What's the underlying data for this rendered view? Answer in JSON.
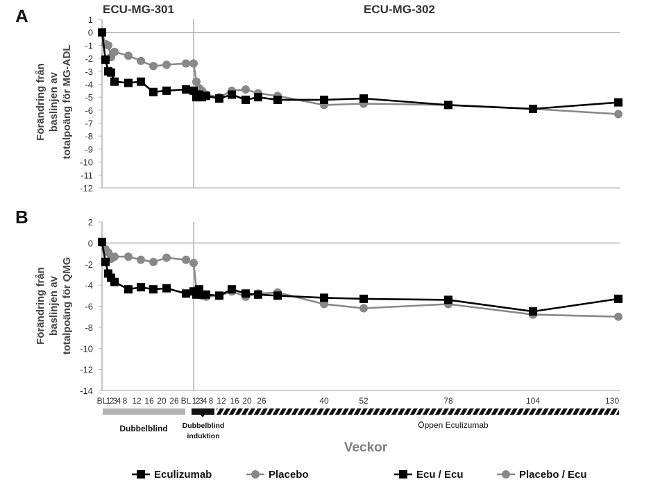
{
  "colors": {
    "eculizumab": "#000000",
    "placebo": "#888888",
    "axis": "#b0b0b0",
    "phase_db": "#b3b3b3"
  },
  "study_labels": [
    "ECU-MG-301",
    "ECU-MG-302"
  ],
  "x_axis": {
    "title": "Veckor",
    "tick_labels_301": [
      "BL",
      "1",
      "2",
      "3",
      "4",
      "8",
      "12",
      "16",
      "20",
      "26"
    ],
    "tick_labels_302": [
      "BL",
      "1",
      "2",
      "3",
      "4",
      "8",
      "12",
      "16",
      "20",
      "26",
      "40",
      "52",
      "78",
      "104",
      "130"
    ]
  },
  "phases": {
    "double_blind": "Dubbelblind",
    "double_blind_induction_line1": "Dubbelblind",
    "double_blind_induction_line2": "induktion",
    "open_label": "Öppen Eculizumab"
  },
  "legend": [
    {
      "label": "Eculizumab",
      "series": "eculizumab"
    },
    {
      "label": "Placebo",
      "series": "placebo"
    },
    {
      "label": "Ecu / Ecu",
      "series": "eculizumab"
    },
    {
      "label": "Placebo / Ecu",
      "series": "placebo"
    }
  ],
  "chart_data": [
    {
      "type": "line",
      "panel": "A",
      "ylabel": [
        "Förändring från",
        "baslinjen av",
        "totalpoäng för MG-ADL"
      ],
      "ylim": [
        -12,
        1
      ],
      "yticks": [
        1,
        0,
        -1,
        -2,
        -3,
        -4,
        -5,
        -6,
        -7,
        -8,
        -9,
        -10,
        -11,
        -12
      ],
      "series": [
        {
          "name": "Eculizumab / Ecu / Ecu",
          "color_key": "eculizumab",
          "marker": "square",
          "points_301": [
            [
              "BL",
              0
            ],
            [
              "1",
              -2.1
            ],
            [
              "2",
              -3.0
            ],
            [
              "3",
              -3.1
            ],
            [
              "4",
              -3.8
            ],
            [
              "8",
              -3.9
            ],
            [
              "12",
              -3.8
            ],
            [
              "16",
              -4.6
            ],
            [
              "20",
              -4.5
            ],
            [
              "26",
              -4.4
            ]
          ],
          "points_302": [
            [
              "BL",
              -4.5
            ],
            [
              "1",
              -5.0
            ],
            [
              "2",
              -4.8
            ],
            [
              "3",
              -5.0
            ],
            [
              "4",
              -4.9
            ],
            [
              "8",
              -5.1
            ],
            [
              "12",
              -4.8
            ],
            [
              "16",
              -5.2
            ],
            [
              "20",
              -5.0
            ],
            [
              "26",
              -5.2
            ],
            [
              "40",
              -5.2
            ],
            [
              "52",
              -5.1
            ],
            [
              "78",
              -5.6
            ],
            [
              "104",
              -5.9
            ],
            [
              "130",
              -5.4
            ]
          ]
        },
        {
          "name": "Placebo / Placebo / Ecu",
          "color_key": "placebo",
          "marker": "circle",
          "points_301": [
            [
              "BL",
              0
            ],
            [
              "1",
              -0.9
            ],
            [
              "2",
              -1.0
            ],
            [
              "3",
              -1.9
            ],
            [
              "4",
              -1.5
            ],
            [
              "8",
              -1.8
            ],
            [
              "12",
              -2.2
            ],
            [
              "16",
              -2.6
            ],
            [
              "20",
              -2.5
            ],
            [
              "26",
              -2.4
            ]
          ],
          "points_302": [
            [
              "BL",
              -2.4
            ],
            [
              "1",
              -3.8
            ],
            [
              "2",
              -4.3
            ],
            [
              "3",
              -4.5
            ],
            [
              "4",
              -4.8
            ],
            [
              "8",
              -5.0
            ],
            [
              "12",
              -4.5
            ],
            [
              "16",
              -4.4
            ],
            [
              "20",
              -4.7
            ],
            [
              "26",
              -4.9
            ],
            [
              "40",
              -5.6
            ],
            [
              "52",
              -5.5
            ],
            [
              "78",
              -5.6
            ],
            [
              "104",
              -5.9
            ],
            [
              "130",
              -6.3
            ]
          ]
        }
      ]
    },
    {
      "type": "line",
      "panel": "B",
      "ylabel": [
        "Förändring från",
        "baslinjen av",
        "totalpoäng för QMG"
      ],
      "ylim": [
        -14,
        2
      ],
      "yticks": [
        2,
        0,
        -2,
        -4,
        -6,
        -8,
        -10,
        -12,
        -14
      ],
      "series": [
        {
          "name": "Eculizumab / Ecu / Ecu",
          "color_key": "eculizumab",
          "marker": "square",
          "points_301": [
            [
              "BL",
              0.1
            ],
            [
              "1",
              -1.8
            ],
            [
              "2",
              -2.9
            ],
            [
              "3",
              -3.3
            ],
            [
              "4",
              -3.7
            ],
            [
              "8",
              -4.4
            ],
            [
              "12",
              -4.2
            ],
            [
              "16",
              -4.4
            ],
            [
              "20",
              -4.3
            ],
            [
              "26",
              -4.8
            ]
          ],
          "points_302": [
            [
              "BL",
              -4.6
            ],
            [
              "1",
              -4.9
            ],
            [
              "2",
              -4.4
            ],
            [
              "3",
              -4.9
            ],
            [
              "4",
              -4.9
            ],
            [
              "8",
              -5.0
            ],
            [
              "12",
              -4.4
            ],
            [
              "16",
              -4.8
            ],
            [
              "20",
              -4.9
            ],
            [
              "26",
              -5.0
            ],
            [
              "40",
              -5.2
            ],
            [
              "52",
              -5.3
            ],
            [
              "78",
              -5.4
            ],
            [
              "104",
              -6.5
            ],
            [
              "130",
              -5.3
            ]
          ]
        },
        {
          "name": "Placebo / Placebo / Ecu",
          "color_key": "placebo",
          "marker": "circle",
          "points_301": [
            [
              "BL",
              0
            ],
            [
              "1",
              -0.6
            ],
            [
              "2",
              -0.9
            ],
            [
              "3",
              -1.5
            ],
            [
              "4",
              -1.3
            ],
            [
              "8",
              -1.3
            ],
            [
              "12",
              -1.6
            ],
            [
              "16",
              -1.8
            ],
            [
              "20",
              -1.4
            ],
            [
              "26",
              -1.6
            ]
          ],
          "points_302": [
            [
              "BL",
              -1.9
            ],
            [
              "1",
              -4.4
            ],
            [
              "2",
              -4.8
            ],
            [
              "3",
              -5.0
            ],
            [
              "4",
              -5.1
            ],
            [
              "8",
              -5.0
            ],
            [
              "12",
              -4.6
            ],
            [
              "16",
              -5.1
            ],
            [
              "20",
              -4.8
            ],
            [
              "26",
              -4.7
            ],
            [
              "40",
              -5.8
            ],
            [
              "52",
              -6.2
            ],
            [
              "78",
              -5.8
            ],
            [
              "104",
              -6.8
            ],
            [
              "130",
              -7.0
            ]
          ]
        }
      ]
    }
  ]
}
